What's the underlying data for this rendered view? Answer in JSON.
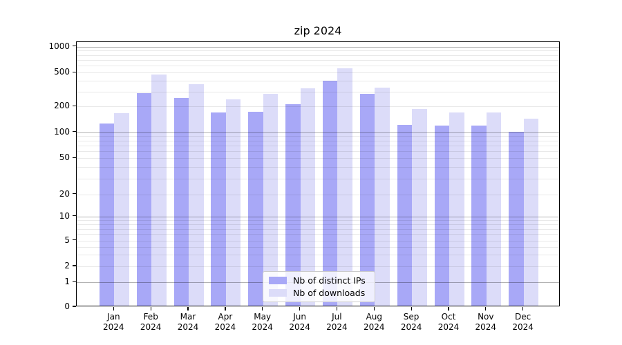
{
  "title": "zip 2024",
  "chart_data": {
    "type": "bar",
    "title": "zip 2024",
    "categories": [
      "Jan",
      "Feb",
      "Mar",
      "Apr",
      "May",
      "Jun",
      "Jul",
      "Aug",
      "Sep",
      "Oct",
      "Nov",
      "Dec"
    ],
    "category_year": "2024",
    "series": [
      {
        "name": "Nb of distinct IPs",
        "color": "#a8a8f7",
        "values": [
          122,
          278,
          244,
          164,
          168,
          206,
          385,
          273,
          117,
          115,
          115,
          97
        ]
      },
      {
        "name": "Nb of downloads",
        "color": "#dcdcf9",
        "values": [
          161,
          458,
          354,
          234,
          270,
          313,
          541,
          323,
          180,
          163,
          163,
          138
        ]
      }
    ],
    "yscale": "symlog",
    "yticks": [
      0,
      1,
      2,
      5,
      10,
      20,
      50,
      100,
      200,
      500,
      1000
    ],
    "ylim": [
      0,
      1000
    ],
    "grid": "both",
    "legend_position": "lower center"
  }
}
